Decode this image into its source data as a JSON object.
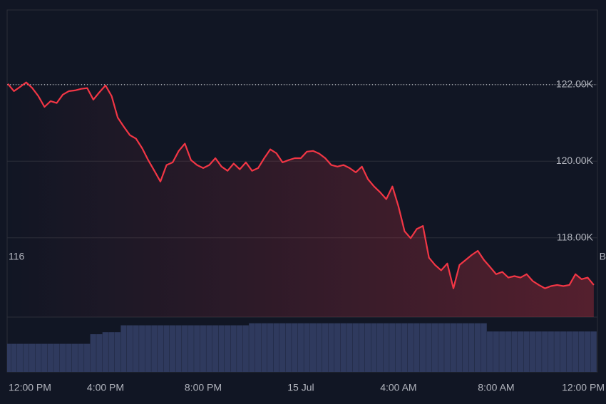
{
  "chart_data": {
    "type": "line",
    "x": [
      0,
      0.25,
      0.5,
      0.75,
      1,
      1.25,
      1.5,
      1.75,
      2,
      2.25,
      2.5,
      2.75,
      3,
      3.25,
      3.5,
      3.75,
      4,
      4.25,
      4.5,
      4.75,
      5,
      5.25,
      5.5,
      5.75,
      6,
      6.25,
      6.5,
      6.75,
      7,
      7.25,
      7.5,
      7.75,
      8,
      8.25,
      8.5,
      8.75,
      9,
      9.25,
      9.5,
      9.75,
      10,
      10.25,
      10.5,
      10.75,
      11,
      11.25,
      11.5,
      11.75,
      12,
      12.25,
      12.5,
      12.75,
      13,
      13.25,
      13.5,
      13.75,
      14,
      14.25,
      14.5,
      14.75,
      15,
      15.25,
      15.5,
      15.75,
      16,
      16.25,
      16.5,
      16.75,
      17,
      17.25,
      17.5,
      17.75,
      18,
      18.25,
      18.5,
      18.75,
      19,
      19.25,
      19.5,
      19.75,
      20,
      20.25,
      20.5,
      20.75,
      21,
      21.25,
      21.5,
      21.75,
      22,
      22.25,
      22.5,
      22.75,
      23,
      23.25,
      23.5,
      23.75,
      24
    ],
    "series": [
      {
        "color": "#f23645",
        "values": [
          122020,
          121830,
          121940,
          122060,
          121910,
          121700,
          121420,
          121570,
          121520,
          121740,
          121830,
          121850,
          121890,
          121910,
          121610,
          121800,
          121980,
          121700,
          121140,
          120900,
          120680,
          120590,
          120340,
          120030,
          119750,
          119470,
          119900,
          119970,
          120270,
          120460,
          120030,
          119900,
          119820,
          119900,
          120080,
          119860,
          119750,
          119940,
          119790,
          119970,
          119750,
          119820,
          120080,
          120310,
          120210,
          119970,
          120030,
          120080,
          120080,
          120250,
          120270,
          120200,
          120080,
          119900,
          119860,
          119900,
          119820,
          119710,
          119860,
          119530,
          119340,
          119190,
          119010,
          119340,
          118820,
          118170,
          117990,
          118230,
          118310,
          117480,
          117290,
          117150,
          117330,
          116680,
          117290,
          117420,
          117550,
          117660,
          117420,
          117240,
          117050,
          117110,
          116960,
          117000,
          116960,
          117050,
          116870,
          116770,
          116680,
          116740,
          116770,
          116740,
          116770,
          117050,
          116920,
          116960,
          116770
        ]
      }
    ],
    "volume": {
      "color": "#2f3a5e",
      "ylim": [
        0,
        80
      ],
      "values": [
        41,
        41,
        41,
        41,
        41,
        41,
        41,
        41,
        41,
        41,
        41,
        41,
        41,
        41,
        55,
        55,
        58,
        58,
        58,
        68,
        68,
        68,
        68,
        68,
        68,
        68,
        68,
        68,
        68,
        68,
        68,
        68,
        68,
        68,
        68,
        68,
        68,
        68,
        68,
        68,
        71,
        71,
        71,
        71,
        71,
        71,
        71,
        71,
        71,
        71,
        71,
        71,
        71,
        71,
        71,
        71,
        71,
        71,
        71,
        71,
        71,
        71,
        71,
        71,
        71,
        71,
        71,
        71,
        71,
        71,
        71,
        71,
        71,
        71,
        71,
        71,
        71,
        71,
        71,
        59,
        59,
        59,
        59,
        59,
        59,
        59,
        59,
        59,
        59,
        59,
        59,
        59,
        59,
        59,
        59,
        59,
        59
      ]
    },
    "baseline": 122000,
    "xlim": [
      -0.03,
      24.15
    ],
    "xticks": [
      {
        "value": 0,
        "label": "12:00 PM"
      },
      {
        "value": 4,
        "label": "4:00 PM"
      },
      {
        "value": 8,
        "label": "8:00 PM"
      },
      {
        "value": 12,
        "label": "15 Jul"
      },
      {
        "value": 16,
        "label": "4:00 AM"
      },
      {
        "value": 20,
        "label": "8:00 AM"
      },
      {
        "value": 24,
        "label": "12:00 PM"
      }
    ],
    "ylim": [
      115930,
      123950
    ],
    "yticks": [
      {
        "value": 118000,
        "label": "118.00K"
      },
      {
        "value": 120000,
        "label": "120.00K"
      },
      {
        "value": 122000,
        "label": "122.00K"
      }
    ],
    "annotations": [
      "116",
      "B"
    ],
    "grid": true
  }
}
